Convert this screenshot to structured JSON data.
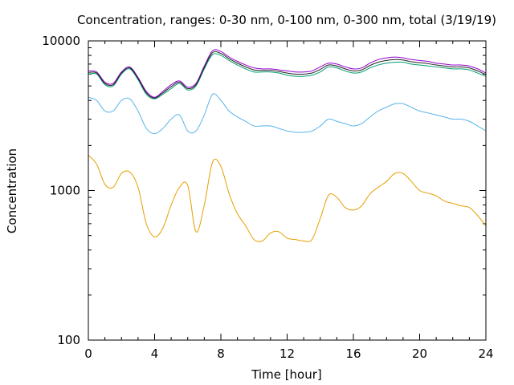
{
  "chart_data": {
    "type": "line",
    "title": "Concentration, ranges: 0-30 nm, 0-100 nm, 0-300 nm, total (3/19/19)",
    "xlabel": "Time [hour]",
    "ylabel": "Concentration",
    "xlim": [
      0,
      24
    ],
    "ylim": [
      100,
      10000
    ],
    "yscale": "log",
    "grid": false,
    "legend": "none",
    "x_ticks": [
      0,
      4,
      8,
      12,
      16,
      20,
      24
    ],
    "x_tick_labels": [
      "0",
      "4",
      "8",
      "12",
      "16",
      "20",
      "24"
    ],
    "y_ticks": [
      100,
      1000,
      10000
    ],
    "y_tick_labels": [
      "100",
      "1000",
      "10000"
    ],
    "x": [
      0,
      0.5,
      1,
      1.5,
      2,
      2.5,
      3,
      3.5,
      4,
      4.5,
      5,
      5.5,
      6,
      6.5,
      7,
      7.5,
      8,
      8.5,
      9,
      9.5,
      10,
      10.5,
      11,
      11.5,
      12,
      12.5,
      13,
      13.5,
      14,
      14.5,
      15,
      15.5,
      16,
      16.5,
      17,
      17.5,
      18,
      18.5,
      19,
      19.5,
      20,
      20.5,
      21,
      21.5,
      22,
      22.5,
      23,
      23.5,
      24
    ],
    "series": [
      {
        "color": "#e69f00",
        "values": [
          1720,
          1500,
          1100,
          1050,
          1300,
          1330,
          1050,
          600,
          490,
          560,
          800,
          1050,
          1080,
          530,
          800,
          1550,
          1450,
          950,
          700,
          580,
          470,
          460,
          520,
          530,
          480,
          470,
          460,
          470,
          650,
          930,
          900,
          770,
          740,
          790,
          950,
          1050,
          1150,
          1300,
          1300,
          1150,
          1000,
          960,
          920,
          850,
          820,
          790,
          770,
          680,
          580
        ]
      },
      {
        "color": "#56b4e9",
        "values": [
          4200,
          4000,
          3400,
          3400,
          4000,
          4100,
          3400,
          2600,
          2400,
          2600,
          3000,
          3200,
          2500,
          2500,
          3200,
          4400,
          4000,
          3400,
          3100,
          2900,
          2700,
          2700,
          2700,
          2600,
          2500,
          2450,
          2450,
          2500,
          2700,
          3000,
          2900,
          2800,
          2700,
          2800,
          3100,
          3400,
          3600,
          3800,
          3800,
          3600,
          3400,
          3300,
          3200,
          3100,
          3000,
          3000,
          2900,
          2700,
          2500
        ]
      },
      {
        "color": "#009e73",
        "values": [
          6000,
          6000,
          5100,
          5000,
          6000,
          6500,
          5500,
          4400,
          4100,
          4400,
          4800,
          5200,
          4700,
          5000,
          6500,
          8100,
          8000,
          7400,
          6900,
          6500,
          6200,
          6200,
          6200,
          6100,
          5900,
          5800,
          5800,
          5900,
          6200,
          6700,
          6600,
          6300,
          6100,
          6200,
          6600,
          6900,
          7100,
          7200,
          7200,
          7000,
          6900,
          6800,
          6700,
          6600,
          6500,
          6500,
          6400,
          6100,
          5800
        ]
      },
      {
        "color": "#9400d3",
        "values": [
          6300,
          6200,
          5300,
          5200,
          6200,
          6700,
          5700,
          4600,
          4200,
          4600,
          5100,
          5400,
          4900,
          5200,
          6800,
          8600,
          8500,
          7800,
          7300,
          6900,
          6600,
          6500,
          6500,
          6400,
          6300,
          6200,
          6200,
          6300,
          6700,
          7100,
          7000,
          6700,
          6500,
          6600,
          7100,
          7500,
          7700,
          7800,
          7700,
          7500,
          7400,
          7300,
          7100,
          7000,
          6900,
          6900,
          6800,
          6500,
          6100
        ]
      },
      {
        "color": "#222222",
        "values": [
          6150,
          6100,
          5200,
          5100,
          6100,
          6600,
          5600,
          4500,
          4150,
          4500,
          4950,
          5300,
          4800,
          5100,
          6650,
          8350,
          8250,
          7600,
          7100,
          6700,
          6400,
          6350,
          6350,
          6250,
          6100,
          6000,
          6000,
          6100,
          6450,
          6900,
          6800,
          6500,
          6300,
          6400,
          6850,
          7200,
          7400,
          7500,
          7450,
          7250,
          7150,
          7050,
          6900,
          6800,
          6700,
          6700,
          6600,
          6300,
          5950
        ]
      }
    ]
  }
}
